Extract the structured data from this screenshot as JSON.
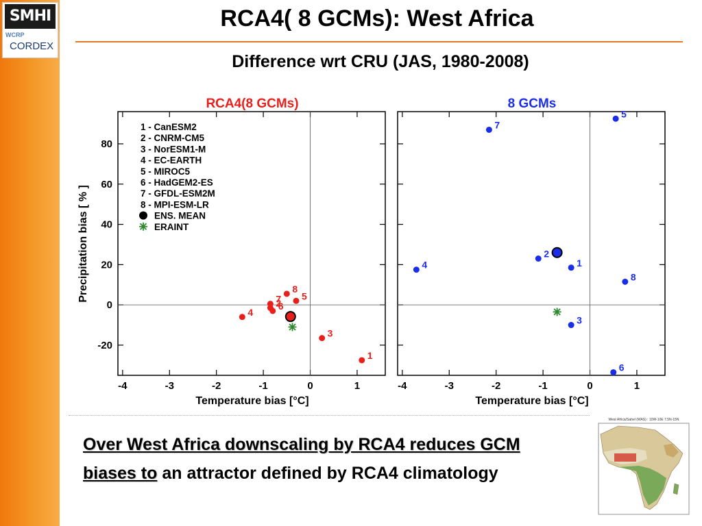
{
  "header": {
    "title": "RCA4( 8 GCMs): West Africa",
    "subtitle": "Difference wrt CRU (JAS, 1980-2008)"
  },
  "logos": {
    "smhi": "SMHI",
    "wcrp": "WCRP",
    "cordex": "CORDEX"
  },
  "chart_data": [
    {
      "type": "scatter",
      "title": "RCA4(8 GCMs)",
      "title_color": "#e8201c",
      "marker_color": "#e8201c",
      "xlabel": "Temperature bias [°C]",
      "ylabel": "Precipitation bias [ % ]",
      "xlim": [
        -4.1,
        1.6
      ],
      "ylim": [
        -35,
        96
      ],
      "xticks": [
        -4,
        -3,
        -2,
        -1,
        0,
        1
      ],
      "yticks": [
        -20,
        0,
        20,
        40,
        60,
        80
      ],
      "reference_lines": {
        "x": 0,
        "y": 0
      },
      "legend_placement": "top-left",
      "legend": [
        "1 - CanESM2",
        "2 - CNRM-CM5",
        "3 - NorESM1-M",
        "4 - EC-EARTH",
        "5 - MIROC5",
        "6 - HadGEM2-ES",
        "7 - GFDL-ESM2M",
        "8 - MPI-ESM-LR",
        "ENS. MEAN",
        "ERAINT"
      ],
      "points": [
        {
          "label": "1",
          "x": 1.1,
          "y": -27.5
        },
        {
          "label": "2",
          "x": -0.85,
          "y": -1.5
        },
        {
          "label": "3",
          "x": 0.25,
          "y": -16.5
        },
        {
          "label": "4",
          "x": -1.45,
          "y": -6
        },
        {
          "label": "5",
          "x": -0.3,
          "y": 2
        },
        {
          "label": "6",
          "x": -0.8,
          "y": -3
        },
        {
          "label": "7",
          "x": -0.85,
          "y": 0.5
        },
        {
          "label": "8",
          "x": -0.5,
          "y": 5.5
        }
      ],
      "ensemble_mean": {
        "x": -0.42,
        "y": -5.8
      },
      "reanalysis": {
        "x": -0.38,
        "y": -11
      }
    },
    {
      "type": "scatter",
      "title": "8 GCMs",
      "title_color": "#1a2ee8",
      "marker_color": "#1a2ee8",
      "xlabel": "Temperature bias [°C]",
      "ylabel": "",
      "xlim": [
        -4.1,
        1.6
      ],
      "ylim": [
        -35,
        96
      ],
      "xticks": [
        -4,
        -3,
        -2,
        -1,
        0,
        1
      ],
      "yticks": [
        -20,
        0,
        20,
        40,
        60,
        80
      ],
      "reference_lines": {
        "x": 0,
        "y": 0
      },
      "points": [
        {
          "label": "1",
          "x": -0.4,
          "y": 18.5
        },
        {
          "label": "2",
          "x": -1.1,
          "y": 23
        },
        {
          "label": "3",
          "x": -0.4,
          "y": -10
        },
        {
          "label": "4",
          "x": -3.7,
          "y": 17.5
        },
        {
          "label": "5",
          "x": 0.55,
          "y": 92.5
        },
        {
          "label": "6",
          "x": 0.5,
          "y": -33.5
        },
        {
          "label": "7",
          "x": -2.15,
          "y": 87
        },
        {
          "label": "8",
          "x": 0.75,
          "y": 11.5
        }
      ],
      "ensemble_mean": {
        "x": -0.7,
        "y": 26
      },
      "reanalysis": {
        "x": -0.7,
        "y": -3.5
      }
    }
  ],
  "summary": {
    "highlight": "Over West Africa downscaling by RCA4 reduces GCM biases to",
    "rest": " an attractor defined by RCA4 climatology"
  },
  "inset_map": {
    "title": "West Africa/Sahel (WAS) : 10W-10E 7.5N-15N"
  }
}
